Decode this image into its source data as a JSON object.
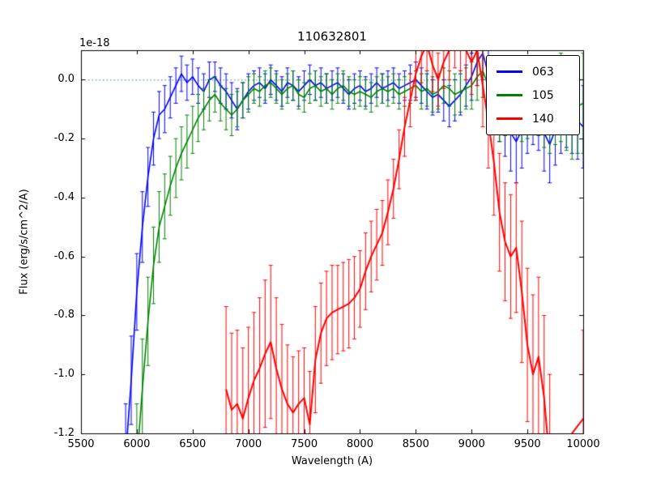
{
  "figure": {
    "offset_text": "1e-18"
  },
  "chart_data": {
    "type": "line",
    "title": "110632801",
    "xlabel": "Wavelength (A)",
    "ylabel": "Flux (erg/s/cm^2/A)",
    "y_unit_factor": "1e-18",
    "xlim": [
      5500,
      10000
    ],
    "ylim": [
      -1.2,
      0.1
    ],
    "xticks": [
      5500,
      6000,
      6500,
      7000,
      7500,
      8000,
      8500,
      9000,
      9500,
      10000
    ],
    "yticks": [
      0.0,
      -0.2,
      -0.4,
      -0.6,
      -0.8,
      -1.0,
      -1.2
    ],
    "grid": "dashed horizontal line at y=0 only",
    "zero_line": {
      "y": 0,
      "style": "dotted",
      "color": "#2f7d6e"
    },
    "legend_position": "upper right",
    "errorbars": true,
    "series": [
      {
        "name": "063",
        "color": "#0000ff",
        "linewidth": 1.6,
        "points": [
          [
            5900,
            -1.28,
            0.18
          ],
          [
            5950,
            -1.02,
            0.15
          ],
          [
            6000,
            -0.72,
            0.13
          ],
          [
            6050,
            -0.5,
            0.12
          ],
          [
            6100,
            -0.33,
            0.1
          ],
          [
            6150,
            -0.2,
            0.09
          ],
          [
            6200,
            -0.12,
            0.08
          ],
          [
            6250,
            -0.1,
            0.08
          ],
          [
            6300,
            -0.06,
            0.07
          ],
          [
            6350,
            -0.02,
            0.06
          ],
          [
            6400,
            0.02,
            0.06
          ],
          [
            6450,
            -0.01,
            0.06
          ],
          [
            6500,
            0.01,
            0.06
          ],
          [
            6550,
            -0.02,
            0.06
          ],
          [
            6600,
            -0.04,
            0.06
          ],
          [
            6650,
            0.0,
            0.06
          ],
          [
            6700,
            0.01,
            0.05
          ],
          [
            6750,
            -0.02,
            0.06
          ],
          [
            6800,
            -0.04,
            0.06
          ],
          [
            6850,
            -0.07,
            0.06
          ],
          [
            6900,
            -0.1,
            0.07
          ],
          [
            6950,
            -0.07,
            0.06
          ],
          [
            7000,
            -0.04,
            0.06
          ],
          [
            7050,
            -0.02,
            0.05
          ],
          [
            7100,
            -0.01,
            0.05
          ],
          [
            7150,
            -0.03,
            0.05
          ],
          [
            7200,
            0.0,
            0.05
          ],
          [
            7250,
            -0.02,
            0.05
          ],
          [
            7300,
            -0.04,
            0.05
          ],
          [
            7350,
            -0.01,
            0.05
          ],
          [
            7400,
            -0.02,
            0.05
          ],
          [
            7450,
            -0.04,
            0.05
          ],
          [
            7500,
            -0.02,
            0.05
          ],
          [
            7550,
            0.0,
            0.05
          ],
          [
            7600,
            -0.02,
            0.05
          ],
          [
            7650,
            -0.01,
            0.05
          ],
          [
            7700,
            -0.03,
            0.05
          ],
          [
            7750,
            -0.02,
            0.05
          ],
          [
            7800,
            -0.01,
            0.05
          ],
          [
            7850,
            -0.03,
            0.05
          ],
          [
            7900,
            -0.05,
            0.05
          ],
          [
            7950,
            -0.03,
            0.05
          ],
          [
            8000,
            -0.02,
            0.05
          ],
          [
            8050,
            -0.04,
            0.05
          ],
          [
            8100,
            -0.03,
            0.05
          ],
          [
            8150,
            -0.01,
            0.05
          ],
          [
            8200,
            -0.03,
            0.05
          ],
          [
            8250,
            -0.02,
            0.05
          ],
          [
            8300,
            -0.01,
            0.05
          ],
          [
            8350,
            -0.03,
            0.05
          ],
          [
            8400,
            -0.02,
            0.05
          ],
          [
            8450,
            -0.01,
            0.06
          ],
          [
            8500,
            0.0,
            0.06
          ],
          [
            8550,
            -0.02,
            0.06
          ],
          [
            8600,
            -0.04,
            0.06
          ],
          [
            8650,
            -0.06,
            0.06
          ],
          [
            8700,
            -0.05,
            0.06
          ],
          [
            8750,
            -0.07,
            0.07
          ],
          [
            8800,
            -0.09,
            0.07
          ],
          [
            8850,
            -0.07,
            0.07
          ],
          [
            8900,
            -0.05,
            0.07
          ],
          [
            8950,
            -0.02,
            0.07
          ],
          [
            9000,
            0.01,
            0.08
          ],
          [
            9050,
            0.06,
            0.08
          ],
          [
            9100,
            0.09,
            0.09
          ],
          [
            9150,
            0.02,
            0.09
          ],
          [
            9200,
            -0.05,
            0.1
          ],
          [
            9250,
            -0.1,
            0.11
          ],
          [
            9300,
            -0.14,
            0.12
          ],
          [
            9350,
            -0.18,
            0.13
          ],
          [
            9400,
            -0.21,
            0.14
          ],
          [
            9450,
            -0.17,
            0.13
          ],
          [
            9500,
            -0.13,
            0.12
          ],
          [
            9550,
            -0.1,
            0.12
          ],
          [
            9600,
            -0.12,
            0.12
          ],
          [
            9650,
            -0.18,
            0.13
          ],
          [
            9700,
            -0.22,
            0.13
          ],
          [
            9750,
            -0.17,
            0.12
          ],
          [
            9800,
            -0.13,
            0.12
          ],
          [
            9850,
            -0.11,
            0.12
          ],
          [
            9900,
            -0.12,
            0.13
          ],
          [
            9950,
            -0.14,
            0.13
          ],
          [
            10000,
            -0.16,
            0.14
          ]
        ]
      },
      {
        "name": "105",
        "color": "#008000",
        "linewidth": 1.6,
        "points": [
          [
            6000,
            -1.3,
            0.2
          ],
          [
            6050,
            -1.05,
            0.17
          ],
          [
            6100,
            -0.82,
            0.15
          ],
          [
            6150,
            -0.63,
            0.13
          ],
          [
            6200,
            -0.5,
            0.12
          ],
          [
            6250,
            -0.43,
            0.11
          ],
          [
            6300,
            -0.36,
            0.1
          ],
          [
            6350,
            -0.3,
            0.1
          ],
          [
            6400,
            -0.25,
            0.09
          ],
          [
            6450,
            -0.21,
            0.09
          ],
          [
            6500,
            -0.17,
            0.08
          ],
          [
            6550,
            -0.13,
            0.08
          ],
          [
            6600,
            -0.1,
            0.07
          ],
          [
            6650,
            -0.07,
            0.07
          ],
          [
            6700,
            -0.05,
            0.06
          ],
          [
            6750,
            -0.08,
            0.06
          ],
          [
            6800,
            -0.1,
            0.07
          ],
          [
            6850,
            -0.12,
            0.07
          ],
          [
            6900,
            -0.1,
            0.06
          ],
          [
            6950,
            -0.07,
            0.06
          ],
          [
            7000,
            -0.05,
            0.06
          ],
          [
            7050,
            -0.03,
            0.05
          ],
          [
            7100,
            -0.04,
            0.05
          ],
          [
            7150,
            -0.02,
            0.05
          ],
          [
            7200,
            -0.01,
            0.05
          ],
          [
            7250,
            -0.03,
            0.05
          ],
          [
            7300,
            -0.05,
            0.05
          ],
          [
            7350,
            -0.03,
            0.05
          ],
          [
            7400,
            -0.02,
            0.05
          ],
          [
            7450,
            -0.05,
            0.05
          ],
          [
            7500,
            -0.06,
            0.05
          ],
          [
            7550,
            -0.03,
            0.05
          ],
          [
            7600,
            -0.02,
            0.05
          ],
          [
            7650,
            -0.04,
            0.05
          ],
          [
            7700,
            -0.03,
            0.05
          ],
          [
            7750,
            -0.05,
            0.05
          ],
          [
            7800,
            -0.03,
            0.05
          ],
          [
            7850,
            -0.02,
            0.05
          ],
          [
            7900,
            -0.04,
            0.05
          ],
          [
            7950,
            -0.05,
            0.05
          ],
          [
            8000,
            -0.04,
            0.05
          ],
          [
            8050,
            -0.05,
            0.05
          ],
          [
            8100,
            -0.06,
            0.05
          ],
          [
            8150,
            -0.04,
            0.05
          ],
          [
            8200,
            -0.03,
            0.05
          ],
          [
            8250,
            -0.04,
            0.05
          ],
          [
            8300,
            -0.03,
            0.05
          ],
          [
            8350,
            -0.05,
            0.05
          ],
          [
            8400,
            -0.04,
            0.05
          ],
          [
            8450,
            -0.03,
            0.05
          ],
          [
            8500,
            -0.02,
            0.05
          ],
          [
            8550,
            -0.04,
            0.06
          ],
          [
            8600,
            -0.03,
            0.06
          ],
          [
            8650,
            -0.05,
            0.06
          ],
          [
            8700,
            -0.04,
            0.06
          ],
          [
            8750,
            -0.02,
            0.06
          ],
          [
            8800,
            -0.03,
            0.06
          ],
          [
            8850,
            -0.05,
            0.07
          ],
          [
            8900,
            -0.04,
            0.07
          ],
          [
            8950,
            -0.03,
            0.07
          ],
          [
            9000,
            -0.02,
            0.08
          ],
          [
            9050,
            0.01,
            0.08
          ],
          [
            9100,
            0.03,
            0.09
          ],
          [
            9150,
            -0.02,
            0.09
          ],
          [
            9200,
            -0.07,
            0.1
          ],
          [
            9250,
            -0.1,
            0.11
          ],
          [
            9300,
            -0.08,
            0.11
          ],
          [
            9350,
            -0.05,
            0.11
          ],
          [
            9400,
            -0.06,
            0.12
          ],
          [
            9450,
            -0.09,
            0.12
          ],
          [
            9500,
            -0.07,
            0.13
          ],
          [
            9550,
            -0.05,
            0.13
          ],
          [
            9600,
            -0.06,
            0.13
          ],
          [
            9650,
            -0.09,
            0.14
          ],
          [
            9700,
            -0.11,
            0.14
          ],
          [
            9750,
            -0.08,
            0.14
          ],
          [
            9800,
            -0.06,
            0.15
          ],
          [
            9850,
            -0.09,
            0.15
          ],
          [
            9900,
            -0.11,
            0.16
          ],
          [
            9950,
            -0.09,
            0.16
          ],
          [
            10000,
            -0.08,
            0.17
          ]
        ]
      },
      {
        "name": "140",
        "color": "#ff0000",
        "linewidth": 2.0,
        "points": [
          [
            6800,
            -1.05,
            0.28
          ],
          [
            6850,
            -1.12,
            0.26
          ],
          [
            6900,
            -1.1,
            0.25
          ],
          [
            6950,
            -1.15,
            0.24
          ],
          [
            7000,
            -1.08,
            0.24
          ],
          [
            7050,
            -1.02,
            0.23
          ],
          [
            7100,
            -0.98,
            0.24
          ],
          [
            7150,
            -0.93,
            0.25
          ],
          [
            7200,
            -0.89,
            0.26
          ],
          [
            7250,
            -0.98,
            0.24
          ],
          [
            7300,
            -1.05,
            0.22
          ],
          [
            7350,
            -1.1,
            0.2
          ],
          [
            7400,
            -1.13,
            0.19
          ],
          [
            7450,
            -1.1,
            0.18
          ],
          [
            7500,
            -1.08,
            0.17
          ],
          [
            7550,
            -1.17,
            0.18
          ],
          [
            7600,
            -0.95,
            0.18
          ],
          [
            7650,
            -0.86,
            0.17
          ],
          [
            7700,
            -0.81,
            0.16
          ],
          [
            7750,
            -0.79,
            0.16
          ],
          [
            7800,
            -0.78,
            0.15
          ],
          [
            7850,
            -0.77,
            0.15
          ],
          [
            7900,
            -0.76,
            0.15
          ],
          [
            7950,
            -0.74,
            0.14
          ],
          [
            8000,
            -0.71,
            0.13
          ],
          [
            8050,
            -0.65,
            0.13
          ],
          [
            8100,
            -0.6,
            0.12
          ],
          [
            8150,
            -0.56,
            0.12
          ],
          [
            8200,
            -0.52,
            0.11
          ],
          [
            8250,
            -0.45,
            0.11
          ],
          [
            8300,
            -0.37,
            0.1
          ],
          [
            8350,
            -0.27,
            0.1
          ],
          [
            8400,
            -0.16,
            0.1
          ],
          [
            8450,
            -0.07,
            0.09
          ],
          [
            8500,
            0.02,
            0.09
          ],
          [
            8550,
            0.08,
            0.09
          ],
          [
            8600,
            0.12,
            0.09
          ],
          [
            8650,
            0.05,
            0.09
          ],
          [
            8700,
            0.0,
            0.09
          ],
          [
            8750,
            0.06,
            0.09
          ],
          [
            8800,
            0.1,
            0.1
          ],
          [
            8850,
            0.14,
            0.1
          ],
          [
            8900,
            0.13,
            0.1
          ],
          [
            8950,
            0.1,
            0.1
          ],
          [
            9000,
            0.06,
            0.11
          ],
          [
            9050,
            0.1,
            0.12
          ],
          [
            9100,
            -0.02,
            0.14
          ],
          [
            9150,
            -0.14,
            0.16
          ],
          [
            9200,
            -0.28,
            0.18
          ],
          [
            9250,
            -0.45,
            0.2
          ],
          [
            9300,
            -0.55,
            0.2
          ],
          [
            9350,
            -0.6,
            0.21
          ],
          [
            9400,
            -0.57,
            0.22
          ],
          [
            9450,
            -0.72,
            0.24
          ],
          [
            9500,
            -0.9,
            0.26
          ],
          [
            9550,
            -1.0,
            0.27
          ],
          [
            9600,
            -0.94,
            0.27
          ],
          [
            9650,
            -1.08,
            0.28
          ],
          [
            9700,
            -1.3,
            0.3
          ],
          [
            10000,
            -1.15,
            0.3
          ]
        ]
      }
    ]
  }
}
